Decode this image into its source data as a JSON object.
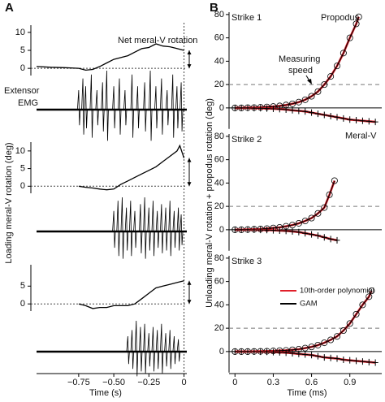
{
  "chart_data": [
    {
      "type": "line",
      "panel": "A",
      "ylabel": "Loading meral-V rotation (deg)",
      "xlabel": "Time (s)",
      "xlim": [
        -1.05,
        0.02
      ],
      "xticks": [
        {
          "value": -0.75,
          "label": "−0.75"
        },
        {
          "value": -0.5,
          "label": "−0.50"
        },
        {
          "value": -0.25,
          "label": "−0.25"
        },
        0
      ],
      "annotation": "Net meral-V rotation",
      "emg_label": [
        "Extensor",
        "EMG"
      ],
      "subplots": [
        {
          "ylim": [
            -2,
            12
          ],
          "yticks": [
            0,
            5,
            10
          ],
          "x": [
            -1.05,
            -0.95,
            -0.85,
            -0.75,
            -0.7,
            -0.65,
            -0.6,
            -0.55,
            -0.5,
            -0.45,
            -0.4,
            -0.35,
            -0.3,
            -0.25,
            -0.2,
            -0.15,
            -0.1,
            -0.05,
            0
          ],
          "values": [
            0.5,
            0.3,
            0.2,
            0,
            -0.5,
            -0.3,
            0.5,
            1.5,
            2.5,
            3,
            3.5,
            4.5,
            5.5,
            5.8,
            6.8,
            6.2,
            6,
            5.5,
            5
          ],
          "emg": {
            "x": [
              -0.75,
              -0.72,
              -0.7,
              -0.66,
              -0.62,
              -0.58,
              -0.55,
              -0.5,
              -0.46,
              -0.42,
              -0.37,
              -0.33,
              -0.28,
              -0.24,
              -0.2,
              -0.16,
              -0.12,
              -0.08,
              -0.05,
              -0.02
            ],
            "values": [
              0.5,
              0.8,
              0.6,
              0.9,
              0.5,
              0.7,
              1,
              0.6,
              0.8,
              0.5,
              0.9,
              0.6,
              0.7,
              1,
              0.6,
              0.8,
              0.5,
              0.9,
              0.6,
              0.7
            ]
          }
        },
        {
          "ylim": [
            -2,
            12.5
          ],
          "yticks": [
            0,
            5,
            10
          ],
          "x": [
            -0.75,
            -0.7,
            -0.65,
            -0.6,
            -0.55,
            -0.5,
            -0.45,
            -0.4,
            -0.35,
            -0.3,
            -0.25,
            -0.2,
            -0.15,
            -0.1,
            -0.05,
            -0.03,
            0
          ],
          "values": [
            0,
            -0.3,
            -0.5,
            -0.8,
            -1,
            -0.8,
            0.5,
            1.5,
            2.5,
            3.5,
            4.5,
            5.5,
            7,
            8.5,
            10,
            11.5,
            8
          ],
          "emg": {
            "x": [
              -0.5,
              -0.47,
              -0.44,
              -0.41,
              -0.38,
              -0.35,
              -0.31,
              -0.28,
              -0.25,
              -0.22,
              -0.19,
              -0.16,
              -0.13,
              -0.1,
              -0.07,
              -0.04,
              -0.02
            ],
            "values": [
              0.6,
              0.9,
              1,
              0.7,
              0.9,
              0.6,
              0.8,
              1,
              0.7,
              0.9,
              0.6,
              0.8,
              0.7,
              0.9,
              0.6,
              0.7,
              0.5
            ]
          }
        },
        {
          "ylim": [
            -2,
            11
          ],
          "yticks": [
            0,
            5
          ],
          "x": [
            -0.75,
            -0.7,
            -0.65,
            -0.6,
            -0.55,
            -0.5,
            -0.45,
            -0.4,
            -0.35,
            -0.3,
            -0.25,
            -0.2,
            -0.15,
            -0.1,
            -0.05,
            0
          ],
          "values": [
            0,
            -0.5,
            -1.3,
            -1,
            -1,
            -0.5,
            -0.5,
            -0.5,
            0,
            1.5,
            3,
            4.5,
            5,
            5.5,
            6,
            6.5
          ],
          "emg": {
            "x": [
              -0.4,
              -0.37,
              -0.34,
              -0.31,
              -0.28,
              -0.25,
              -0.22,
              -0.19,
              -0.16,
              -0.13,
              -0.1,
              -0.07,
              -0.04
            ],
            "values": [
              0.5,
              0.7,
              1,
              0.8,
              0.9,
              0.6,
              0.8,
              0.7,
              0.9,
              0.6,
              0.7,
              0.5,
              0.4
            ]
          }
        }
      ]
    },
    {
      "type": "scatter",
      "panel": "B",
      "ylabel": "Unloading meral-V rotation + propodus rotation (deg)",
      "xlabel": "Time (ms)",
      "xlim": [
        -0.04,
        1.15
      ],
      "xticks": [
        0,
        0.3,
        0.6,
        0.9
      ],
      "ylim": [
        -18,
        82
      ],
      "yticks": [
        0,
        20,
        40,
        60,
        80
      ],
      "ref_line": 20,
      "fits": [
        {
          "name": "10th-order polynomial",
          "color": "#e0202a"
        },
        {
          "name": "GAM",
          "color": "#000000"
        }
      ],
      "annotation": [
        "Measuring",
        "speed"
      ],
      "subplots": [
        {
          "title": "Strike 1",
          "series": [
            {
              "name": "Propodus",
              "marker": "circle",
              "x": [
                0,
                0.05,
                0.1,
                0.15,
                0.2,
                0.25,
                0.3,
                0.35,
                0.4,
                0.45,
                0.5,
                0.55,
                0.6,
                0.65,
                0.7,
                0.75,
                0.8,
                0.85,
                0.9,
                0.95,
                0.97
              ],
              "values": [
                0,
                0,
                0.2,
                0.3,
                0.5,
                0.8,
                1.2,
                1.7,
                2.5,
                3.5,
                5,
                7,
                10,
                14,
                20,
                27,
                36,
                47,
                60,
                72,
                78
              ]
            },
            {
              "name": "Meral-V",
              "marker": "plus",
              "x": [
                0,
                0.05,
                0.1,
                0.15,
                0.2,
                0.25,
                0.3,
                0.35,
                0.4,
                0.45,
                0.5,
                0.55,
                0.6,
                0.65,
                0.7,
                0.75,
                0.8,
                0.85,
                0.9,
                0.95,
                1,
                1.05,
                1.1
              ],
              "values": [
                0,
                0,
                0,
                -0.2,
                -0.3,
                -0.5,
                -0.8,
                -1,
                -1.5,
                -2,
                -2.5,
                -3,
                -4,
                -5,
                -6,
                -7,
                -8,
                -9,
                -10,
                -10.5,
                -11,
                -11.5,
                -12
              ]
            }
          ]
        },
        {
          "title": "Strike 2",
          "series": [
            {
              "marker": "circle",
              "x": [
                0,
                0.05,
                0.1,
                0.15,
                0.2,
                0.25,
                0.3,
                0.35,
                0.4,
                0.45,
                0.5,
                0.55,
                0.6,
                0.65,
                0.7,
                0.74,
                0.78
              ],
              "values": [
                0,
                0,
                0.2,
                0.4,
                0.6,
                1,
                1.5,
                2,
                3,
                4,
                5.5,
                7.5,
                10,
                14,
                19,
                30,
                42
              ]
            },
            {
              "marker": "plus",
              "x": [
                0,
                0.05,
                0.1,
                0.15,
                0.2,
                0.25,
                0.3,
                0.35,
                0.4,
                0.45,
                0.5,
                0.55,
                0.6,
                0.65,
                0.7,
                0.75,
                0.8
              ],
              "values": [
                0,
                0,
                0,
                -0.1,
                -0.2,
                -0.3,
                -0.5,
                -0.8,
                -1,
                -1.5,
                -2,
                -3,
                -4,
                -5,
                -6.5,
                -8,
                -9
              ]
            }
          ]
        },
        {
          "title": "Strike 3",
          "series": [
            {
              "marker": "circle",
              "x": [
                0,
                0.05,
                0.1,
                0.15,
                0.2,
                0.25,
                0.3,
                0.35,
                0.4,
                0.45,
                0.5,
                0.55,
                0.6,
                0.65,
                0.7,
                0.75,
                0.8,
                0.85,
                0.9,
                0.95,
                1,
                1.05,
                1.07
              ],
              "values": [
                0,
                0,
                0,
                0.1,
                0.2,
                0.3,
                0.5,
                0.8,
                1,
                1.5,
                2,
                3,
                4,
                5.5,
                7.5,
                10,
                13,
                18,
                24,
                32,
                40,
                47,
                52
              ]
            },
            {
              "marker": "plus",
              "x": [
                0,
                0.05,
                0.1,
                0.15,
                0.2,
                0.25,
                0.3,
                0.35,
                0.4,
                0.45,
                0.5,
                0.55,
                0.6,
                0.65,
                0.7,
                0.75,
                0.8,
                0.85,
                0.9,
                0.95,
                1,
                1.05,
                1.1
              ],
              "values": [
                0,
                0,
                0,
                -0.1,
                -0.2,
                -0.3,
                -0.5,
                -0.7,
                -1,
                -1.5,
                -2,
                -2.5,
                -3,
                -4,
                -5,
                -5.5,
                -6,
                -7,
                -7.5,
                -8,
                -8.5,
                -9,
                -9.5
              ]
            }
          ]
        }
      ]
    }
  ]
}
